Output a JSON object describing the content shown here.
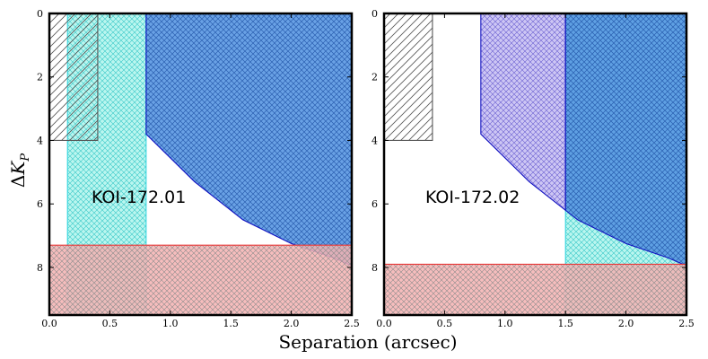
{
  "chart_data": [
    {
      "type": "area",
      "annotation": "KOI-172.01",
      "xlabel": "Separation (arcsec)",
      "ylabel": "ΔK_P",
      "xlim": [
        0,
        2.5
      ],
      "ylim": [
        0,
        9.5
      ],
      "y_inverted": true,
      "xticks": [
        "0.0",
        "0.5",
        "1.0",
        "1.5",
        "2.0",
        "2.5"
      ],
      "yticks": [
        "0",
        "2",
        "4",
        "6",
        "8"
      ],
      "regions": [
        {
          "name": "cyan-region",
          "color": "#aef5ec",
          "hatch": "#37c7c7",
          "edge": "#35d7e0",
          "polygon": [
            [
              0.15,
              0
            ],
            [
              0.8,
              0
            ],
            [
              0.8,
              9.5
            ],
            [
              0.15,
              9.5
            ]
          ]
        },
        {
          "name": "blue-region",
          "color": "#4f91e0",
          "hatch": "#2b5fb0",
          "edge": "#1010c0",
          "polygon": [
            [
              0.8,
              0
            ],
            [
              2.5,
              0
            ],
            [
              2.5,
              7.95
            ],
            [
              2.35,
              7.7
            ],
            [
              2.0,
              7.25
            ],
            [
              1.6,
              6.5
            ],
            [
              1.2,
              5.3
            ],
            [
              0.8,
              3.8
            ]
          ]
        },
        {
          "name": "red-region",
          "color": "#f5b2b2",
          "hatch": "#8c8c8c",
          "edge": "#e83a3a",
          "polygon": [
            [
              0,
              7.3
            ],
            [
              2.5,
              7.3
            ],
            [
              2.5,
              9.5
            ],
            [
              0,
              9.5
            ]
          ]
        },
        {
          "name": "gray-box",
          "color": "none",
          "hatch": "#555555",
          "edge": "#555555",
          "polygon": [
            [
              0,
              0
            ],
            [
              0.4,
              0
            ],
            [
              0.4,
              4
            ],
            [
              0,
              4
            ]
          ]
        }
      ]
    },
    {
      "type": "area",
      "annotation": "KOI-172.02",
      "xlabel": "Separation (arcsec)",
      "ylabel": "ΔK_P",
      "xlim": [
        0,
        2.5
      ],
      "ylim": [
        0,
        9.5
      ],
      "y_inverted": true,
      "xticks": [
        "0.0",
        "0.5",
        "1.0",
        "1.5",
        "2.0",
        "2.5"
      ],
      "yticks": [
        "0",
        "2",
        "4",
        "6",
        "8"
      ],
      "regions": [
        {
          "name": "cyan-region",
          "color": "#aef5ec",
          "hatch": "#37c7c7",
          "edge": "#35d7e0",
          "polygon": [
            [
              1.5,
              0
            ],
            [
              2.5,
              0
            ],
            [
              2.5,
              9.5
            ],
            [
              1.5,
              9.5
            ]
          ]
        },
        {
          "name": "purple-region",
          "color": "#c4bcf2",
          "hatch": "#6a5fd0",
          "edge": "#1010c0",
          "polygon": [
            [
              0.8,
              0
            ],
            [
              1.5,
              0
            ],
            [
              1.5,
              6.2
            ],
            [
              1.2,
              5.3
            ],
            [
              0.8,
              3.8
            ]
          ]
        },
        {
          "name": "blue-region",
          "color": "#4f91e0",
          "hatch": "#2b5fb0",
          "edge": "#1010c0",
          "polygon": [
            [
              1.5,
              0
            ],
            [
              2.5,
              0
            ],
            [
              2.5,
              7.95
            ],
            [
              2.35,
              7.7
            ],
            [
              2.0,
              7.25
            ],
            [
              1.6,
              6.5
            ],
            [
              1.5,
              6.2
            ]
          ]
        },
        {
          "name": "red-region",
          "color": "#f5b2b2",
          "hatch": "#8c8c8c",
          "edge": "#e83a3a",
          "polygon": [
            [
              0,
              7.9
            ],
            [
              2.5,
              7.9
            ],
            [
              2.5,
              9.5
            ],
            [
              0,
              9.5
            ]
          ]
        },
        {
          "name": "gray-box",
          "color": "none",
          "hatch": "#555555",
          "edge": "#555555",
          "polygon": [
            [
              0,
              0
            ],
            [
              0.4,
              0
            ],
            [
              0.4,
              4
            ],
            [
              0,
              4
            ]
          ]
        }
      ]
    }
  ]
}
